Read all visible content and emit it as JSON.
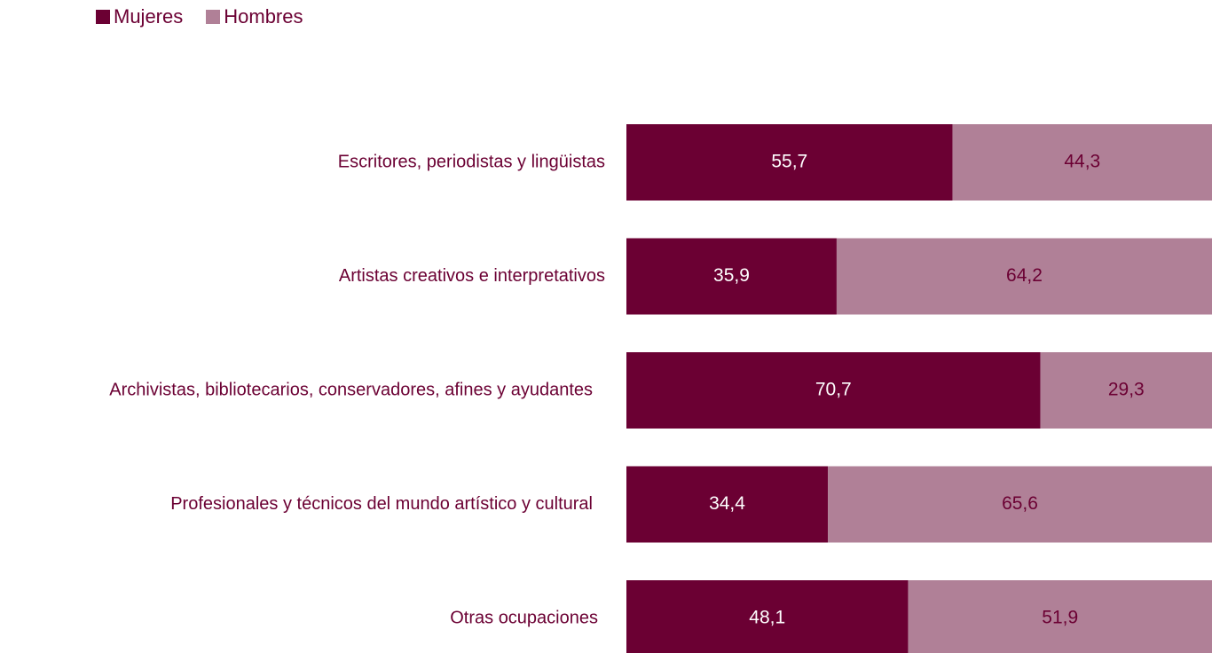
{
  "colors": {
    "mujeres": "#6b0033",
    "hombres": "#b08097",
    "label_text": "#6b0033",
    "value_on_dark": "#ffffff",
    "value_on_light": "#6b0033"
  },
  "legend": {
    "mujeres_label": "Mujeres",
    "hombres_label": "Hombres"
  },
  "chart_data": {
    "type": "bar",
    "orientation": "horizontal",
    "stacked": true,
    "percent_stacked": true,
    "legend_position": "top-left",
    "grid": false,
    "xlim": [
      0,
      100
    ],
    "categories": [
      "Escritores, periodistas y lingüistas",
      "Artistas creativos e interpretativos",
      "Archivistas, bibliotecarios, conservadores, afines y ayudantes",
      "Profesionales y técnicos del mundo artístico y cultural",
      "Otras ocupaciones"
    ],
    "series": [
      {
        "name": "Mujeres",
        "values": [
          55.7,
          35.9,
          70.7,
          34.4,
          48.1
        ],
        "labels": [
          "55,7",
          "35,9",
          "70,7",
          "34,4",
          "48,1"
        ]
      },
      {
        "name": "Hombres",
        "values": [
          44.3,
          64.2,
          29.3,
          65.6,
          51.9
        ],
        "labels": [
          "44,3",
          "64,2",
          "29,3",
          "65,6",
          "51,9"
        ]
      }
    ]
  }
}
